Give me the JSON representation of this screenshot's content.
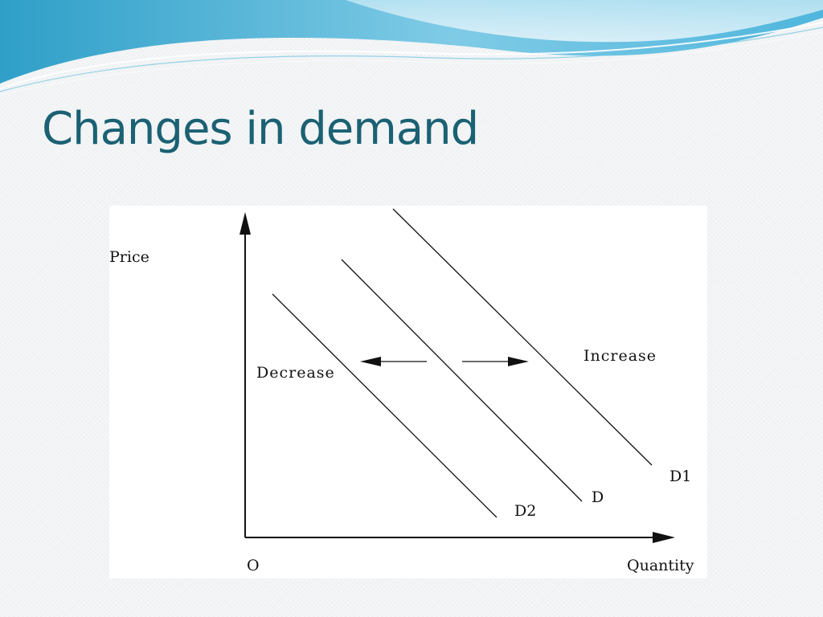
{
  "slide": {
    "title": "Changes in demand"
  },
  "diagram": {
    "y_axis_label": "Price",
    "x_axis_label": "Quantity",
    "origin_label": "O",
    "decrease_label": "Decrease",
    "increase_label": "Increase",
    "curves": [
      {
        "id": "D2",
        "label": "D2"
      },
      {
        "id": "D",
        "label": "D"
      },
      {
        "id": "D1",
        "label": "D1"
      }
    ],
    "colors": {
      "line": "#111111",
      "title": "#1a6173",
      "wave_dark": "#3aaed6",
      "wave_light": "#a8dcef"
    }
  }
}
